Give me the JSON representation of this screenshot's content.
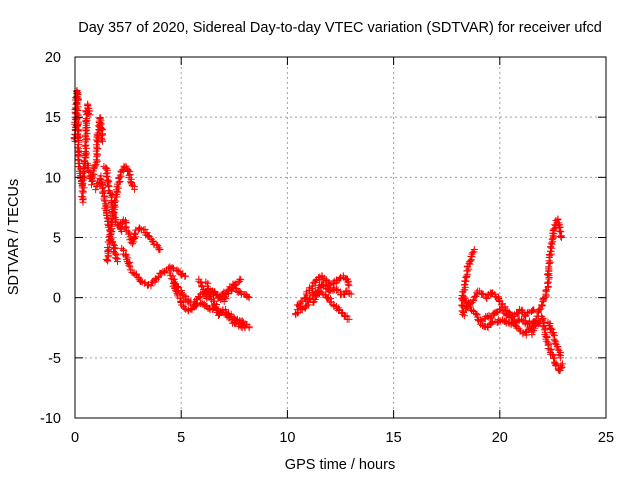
{
  "chart_data": {
    "type": "scatter",
    "title": "Day 357 of 2020, Sidereal Day-to-day VTEC variation (SDTVAR) for receiver ufcd",
    "xlabel": "GPS time / hours",
    "ylabel": "SDTVAR / TECUs",
    "xlim": [
      0,
      25
    ],
    "ylim": [
      -10,
      20
    ],
    "xticks": [
      0,
      5,
      10,
      15,
      20,
      25
    ],
    "yticks": [
      -10,
      -5,
      0,
      5,
      10,
      15,
      20
    ],
    "grid": true,
    "marker": "+",
    "color": "#ff0000",
    "series": [
      {
        "name": "SDTVAR",
        "tracks": [
          [
            [
              0.0,
              13
            ],
            [
              0.05,
              16
            ],
            [
              0.1,
              17.2
            ],
            [
              0.15,
              14
            ],
            [
              0.2,
              11
            ],
            [
              0.25,
              10
            ],
            [
              0.3,
              9.5
            ]
          ],
          [
            [
              0.35,
              8
            ],
            [
              0.4,
              10
            ],
            [
              0.5,
              12
            ],
            [
              0.55,
              15.5
            ],
            [
              0.6,
              16
            ],
            [
              0.7,
              15.2
            ]
          ],
          [
            [
              0.6,
              11
            ],
            [
              0.8,
              9.5
            ],
            [
              0.9,
              10.5
            ],
            [
              1.0,
              11
            ],
            [
              1.1,
              14
            ],
            [
              1.2,
              15
            ],
            [
              1.3,
              13
            ]
          ],
          [
            [
              1.0,
              9
            ],
            [
              1.2,
              10
            ],
            [
              1.3,
              9
            ],
            [
              1.4,
              8
            ],
            [
              1.5,
              7
            ],
            [
              1.6,
              6
            ],
            [
              1.7,
              5
            ],
            [
              1.8,
              4.5
            ],
            [
              1.9,
              3.5
            ],
            [
              2.0,
              3
            ]
          ],
          [
            [
              1.4,
              11
            ],
            [
              1.5,
              10.5
            ],
            [
              1.6,
              9
            ],
            [
              1.7,
              8.5
            ],
            [
              1.8,
              7
            ],
            [
              1.9,
              6.5
            ],
            [
              2.0,
              6
            ],
            [
              2.2,
              5.5
            ]
          ],
          [
            [
              1.5,
              3
            ],
            [
              1.6,
              4.5
            ],
            [
              1.7,
              5.5
            ],
            [
              1.8,
              7
            ],
            [
              1.9,
              8
            ],
            [
              2.0,
              9
            ],
            [
              2.1,
              10
            ],
            [
              2.2,
              10.5
            ],
            [
              2.4,
              11
            ],
            [
              2.6,
              10
            ],
            [
              2.8,
              9
            ]
          ],
          [
            [
              2.1,
              6
            ],
            [
              2.3,
              6.5
            ],
            [
              2.5,
              5.5
            ],
            [
              2.7,
              4.5
            ],
            [
              2.9,
              5.5
            ],
            [
              3.1,
              5.8
            ],
            [
              3.3,
              5.5
            ],
            [
              3.5,
              5
            ],
            [
              3.7,
              4.5
            ],
            [
              3.9,
              4.2
            ],
            [
              4.0,
              4.0
            ]
          ],
          [
            [
              2.2,
              4
            ],
            [
              2.4,
              3.5
            ],
            [
              2.6,
              2.5
            ],
            [
              2.8,
              2
            ],
            [
              3.0,
              1.5
            ],
            [
              3.2,
              1.2
            ],
            [
              3.5,
              1.0
            ],
            [
              3.8,
              1.5
            ],
            [
              4.0,
              2.0
            ],
            [
              4.2,
              2.2
            ],
            [
              4.5,
              2.5
            ],
            [
              4.8,
              2.3
            ],
            [
              5.0,
              2.0
            ],
            [
              5.2,
              1.8
            ]
          ],
          [
            [
              4.5,
              2.0
            ],
            [
              4.8,
              1.0
            ],
            [
              5.0,
              0.5
            ],
            [
              5.2,
              0.0
            ],
            [
              5.4,
              -0.5
            ],
            [
              5.6,
              -0.5
            ],
            [
              5.8,
              0
            ],
            [
              6.0,
              0.3
            ],
            [
              6.3,
              0.5
            ],
            [
              6.5,
              0.5
            ],
            [
              6.7,
              0
            ],
            [
              7.0,
              0.3
            ],
            [
              7.3,
              0.5
            ],
            [
              7.5,
              1
            ],
            [
              7.7,
              0.5
            ],
            [
              8.0,
              0.2
            ],
            [
              8.2,
              0
            ]
          ],
          [
            [
              4.6,
              1.3
            ],
            [
              4.8,
              0.5
            ],
            [
              5.0,
              -0.5
            ],
            [
              5.2,
              -1.0
            ],
            [
              5.5,
              -1.0
            ],
            [
              5.8,
              -0.5
            ],
            [
              6.0,
              -0.5
            ],
            [
              6.3,
              -1
            ],
            [
              6.5,
              -0.8
            ],
            [
              6.8,
              -1
            ],
            [
              7.0,
              -1.2
            ],
            [
              7.3,
              -1.5
            ],
            [
              7.5,
              -1.8
            ],
            [
              7.8,
              -2
            ],
            [
              8.0,
              -2.2
            ],
            [
              8.2,
              -2.5
            ]
          ],
          [
            [
              5.8,
              1.5
            ],
            [
              6.0,
              0.8
            ],
            [
              6.2,
              0
            ],
            [
              6.4,
              0.2
            ],
            [
              6.6,
              0.5
            ],
            [
              6.8,
              0
            ],
            [
              7.0,
              -0.2
            ],
            [
              7.2,
              0.5
            ],
            [
              7.4,
              1
            ],
            [
              7.6,
              1.2
            ],
            [
              7.8,
              1.5
            ]
          ],
          [
            [
              6.2,
              1.2
            ],
            [
              6.4,
              0
            ],
            [
              6.6,
              -0.5
            ],
            [
              6.8,
              -1.5
            ],
            [
              7.0,
              -1
            ],
            [
              7.2,
              -1.5
            ],
            [
              7.4,
              -2
            ],
            [
              7.6,
              -2.2
            ],
            [
              7.8,
              -2.3
            ],
            [
              8.0,
              -2.5
            ]
          ],
          [
            [
              10.4,
              -1.5
            ],
            [
              10.6,
              -0.5
            ],
            [
              10.8,
              0
            ],
            [
              11.0,
              0.5
            ],
            [
              11.2,
              1
            ],
            [
              11.4,
              1.5
            ],
            [
              11.6,
              1.8
            ],
            [
              11.8,
              1.5
            ],
            [
              12.0,
              1
            ],
            [
              12.2,
              1.2
            ],
            [
              12.4,
              1.5
            ],
            [
              12.6,
              1.8
            ],
            [
              12.8,
              1.5
            ],
            [
              12.9,
              1.0
            ]
          ],
          [
            [
              10.5,
              -0.5
            ],
            [
              10.7,
              -1
            ],
            [
              10.9,
              -0.8
            ],
            [
              11.1,
              0
            ],
            [
              11.3,
              0.5
            ],
            [
              11.5,
              0.5
            ],
            [
              11.7,
              0.2
            ],
            [
              11.9,
              0
            ],
            [
              12.1,
              -0.5
            ],
            [
              12.3,
              -0.8
            ],
            [
              12.5,
              -1.2
            ],
            [
              12.7,
              -1.5
            ],
            [
              12.9,
              -1.8
            ]
          ],
          [
            [
              11.2,
              -0.5
            ],
            [
              11.4,
              0.3
            ],
            [
              11.6,
              1.2
            ],
            [
              11.8,
              0.8
            ],
            [
              12.0,
              0.5
            ],
            [
              12.2,
              0.8
            ],
            [
              12.4,
              0.5
            ],
            [
              12.6,
              0.3
            ],
            [
              12.8,
              0.5
            ],
            [
              13.0,
              0.3
            ]
          ],
          [
            [
              18.3,
              -1.5
            ],
            [
              18.2,
              -0.5
            ],
            [
              18.3,
              0.5
            ],
            [
              18.4,
              1.5
            ],
            [
              18.5,
              2.5
            ],
            [
              18.6,
              3
            ],
            [
              18.7,
              3.5
            ],
            [
              18.8,
              4
            ]
          ],
          [
            [
              18.3,
              0
            ],
            [
              18.5,
              -0.5
            ],
            [
              18.7,
              -1
            ],
            [
              18.9,
              -1.5
            ],
            [
              19.1,
              -2
            ],
            [
              19.3,
              -2.5
            ],
            [
              19.5,
              -2.3
            ],
            [
              19.7,
              -2
            ],
            [
              19.9,
              -2
            ],
            [
              20.1,
              -1.8
            ],
            [
              20.3,
              -2
            ],
            [
              20.5,
              -2.2
            ],
            [
              20.7,
              -2
            ],
            [
              20.9,
              -1.8
            ],
            [
              21.1,
              -2
            ],
            [
              21.3,
              -2.2
            ],
            [
              21.5,
              -2.0
            ],
            [
              21.7,
              -2.2
            ],
            [
              21.9,
              -2
            ]
          ],
          [
            [
              18.4,
              -1
            ],
            [
              18.6,
              -0.5
            ],
            [
              18.8,
              0
            ],
            [
              19.0,
              0.5
            ],
            [
              19.2,
              0.3
            ],
            [
              19.4,
              0
            ],
            [
              19.6,
              0.5
            ],
            [
              19.8,
              0.2
            ],
            [
              20.0,
              -0.3
            ],
            [
              20.2,
              -0.8
            ],
            [
              20.4,
              -1.2
            ],
            [
              20.6,
              -1.5
            ],
            [
              20.8,
              -1.3
            ],
            [
              21.0,
              -1.0
            ],
            [
              21.2,
              -1.5
            ],
            [
              21.4,
              -1.2
            ],
            [
              21.6,
              -1.0
            ]
          ],
          [
            [
              19.2,
              -1.8
            ],
            [
              19.4,
              -1.5
            ],
            [
              19.6,
              -1.6
            ],
            [
              19.8,
              -1.2
            ],
            [
              20.0,
              -1
            ],
            [
              20.2,
              -1.2
            ],
            [
              20.4,
              -1.5
            ],
            [
              20.6,
              -1.8
            ],
            [
              20.8,
              -2.5
            ],
            [
              21.0,
              -2.8
            ],
            [
              21.2,
              -3
            ],
            [
              21.4,
              -2.7
            ],
            [
              21.6,
              -2.3
            ]
          ],
          [
            [
              21.5,
              -3
            ],
            [
              21.7,
              -2
            ],
            [
              21.8,
              -1.5
            ],
            [
              21.9,
              -1
            ],
            [
              22.0,
              -0.5
            ],
            [
              22.1,
              0
            ],
            [
              22.2,
              0.5
            ],
            [
              22.25,
              1
            ],
            [
              22.3,
              2
            ],
            [
              22.35,
              3
            ],
            [
              22.4,
              4
            ],
            [
              22.5,
              5
            ],
            [
              22.6,
              6
            ],
            [
              22.7,
              6.5
            ],
            [
              22.8,
              6
            ],
            [
              22.9,
              5
            ]
          ],
          [
            [
              22.0,
              -1.5
            ],
            [
              22.1,
              -2.5
            ],
            [
              22.2,
              -3.5
            ],
            [
              22.3,
              -4
            ],
            [
              22.4,
              -4.5
            ],
            [
              22.5,
              -5
            ],
            [
              22.6,
              -5.5
            ],
            [
              22.7,
              -5.8
            ],
            [
              22.8,
              -6
            ],
            [
              22.9,
              -5.8
            ],
            [
              22.95,
              -5.5
            ]
          ],
          [
            [
              22.3,
              -2
            ],
            [
              22.4,
              -2.5
            ],
            [
              22.5,
              -3
            ],
            [
              22.6,
              -3.5
            ],
            [
              22.7,
              -4
            ],
            [
              22.8,
              -4.5
            ],
            [
              22.85,
              -5
            ]
          ]
        ]
      }
    ]
  }
}
